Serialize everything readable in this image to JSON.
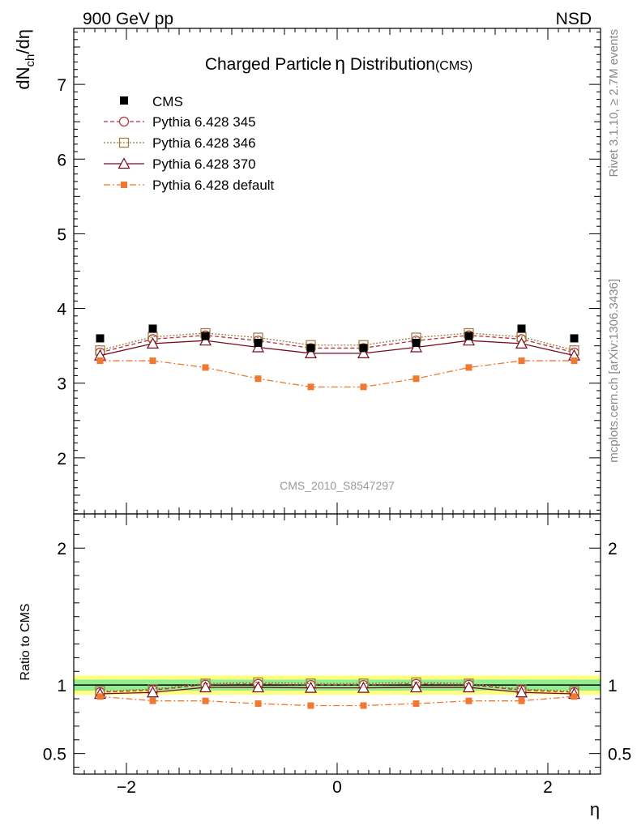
{
  "header": {
    "left": "900 GeV pp",
    "right": "NSD"
  },
  "side_labels": {
    "rivet": "Rivet 3.1.10, ≥ 2.7M events",
    "mcplots": "mcplots.cern.ch [arXiv:1306.3436]"
  },
  "watermark": "CMS_2010_S8547297",
  "chart_data": {
    "type": "line",
    "title_main": "Charged Particle",
    "title_eta": "η",
    "title_rest": " Distribution",
    "title_suffix": "(CMS)",
    "xlabel": "η",
    "ylabel_main": "dN",
    "ylabel_sub": "ch",
    "ylabel_rest": "/dη",
    "ratio_ylabel": "Ratio to CMS",
    "xlim": [
      -2.5,
      2.5
    ],
    "ylim": [
      1.25,
      7.75
    ],
    "ratio_ylim": [
      0.35,
      2.25
    ],
    "x_ticks": [
      -2,
      0,
      2
    ],
    "x_tick_labels": [
      "−2",
      "0",
      "2"
    ],
    "y_ticks": [
      2,
      3,
      4,
      5,
      6,
      7
    ],
    "y_tick_labels": [
      "2",
      "3",
      "4",
      "5",
      "6",
      "7"
    ],
    "ratio_ticks": [
      0.5,
      1,
      2
    ],
    "ratio_tick_labels": [
      "0.5",
      "1",
      "2"
    ],
    "x": [
      -2.25,
      -1.75,
      -1.25,
      -0.75,
      -0.25,
      0.25,
      0.75,
      1.25,
      1.75,
      2.25
    ],
    "data_name": "CMS",
    "data": [
      3.6,
      3.73,
      3.63,
      3.54,
      3.47,
      3.47,
      3.54,
      3.63,
      3.73,
      3.6
    ],
    "series": [
      {
        "name": "Pythia 6.428 345",
        "color": "#b03040",
        "marker": "circle",
        "dash": "5,3",
        "values": [
          3.41,
          3.59,
          3.64,
          3.57,
          3.47,
          3.47,
          3.57,
          3.64,
          3.59,
          3.41
        ]
      },
      {
        "name": "Pythia 6.428 346",
        "color": "#9a7a3c",
        "marker": "square",
        "dash": "2,2",
        "values": [
          3.44,
          3.62,
          3.67,
          3.61,
          3.51,
          3.51,
          3.61,
          3.67,
          3.62,
          3.44
        ]
      },
      {
        "name": "Pythia 6.428 370",
        "color": "#7a0a1e",
        "marker": "triangle",
        "dash": "",
        "values": [
          3.37,
          3.53,
          3.57,
          3.48,
          3.4,
          3.4,
          3.48,
          3.57,
          3.53,
          3.37
        ]
      },
      {
        "name": "Pythia 6.428 default",
        "color": "#f07830",
        "marker": "filled-square",
        "dash": "8,3,2,3",
        "values": [
          3.3,
          3.3,
          3.21,
          3.06,
          2.95,
          2.95,
          3.06,
          3.21,
          3.3,
          3.3
        ]
      }
    ],
    "colors": {
      "data": "#000000",
      "band_inner": "#90ee90",
      "band_outer": "#ffff80"
    },
    "ratio_band": {
      "inner": 0.04,
      "outer": 0.07
    }
  }
}
